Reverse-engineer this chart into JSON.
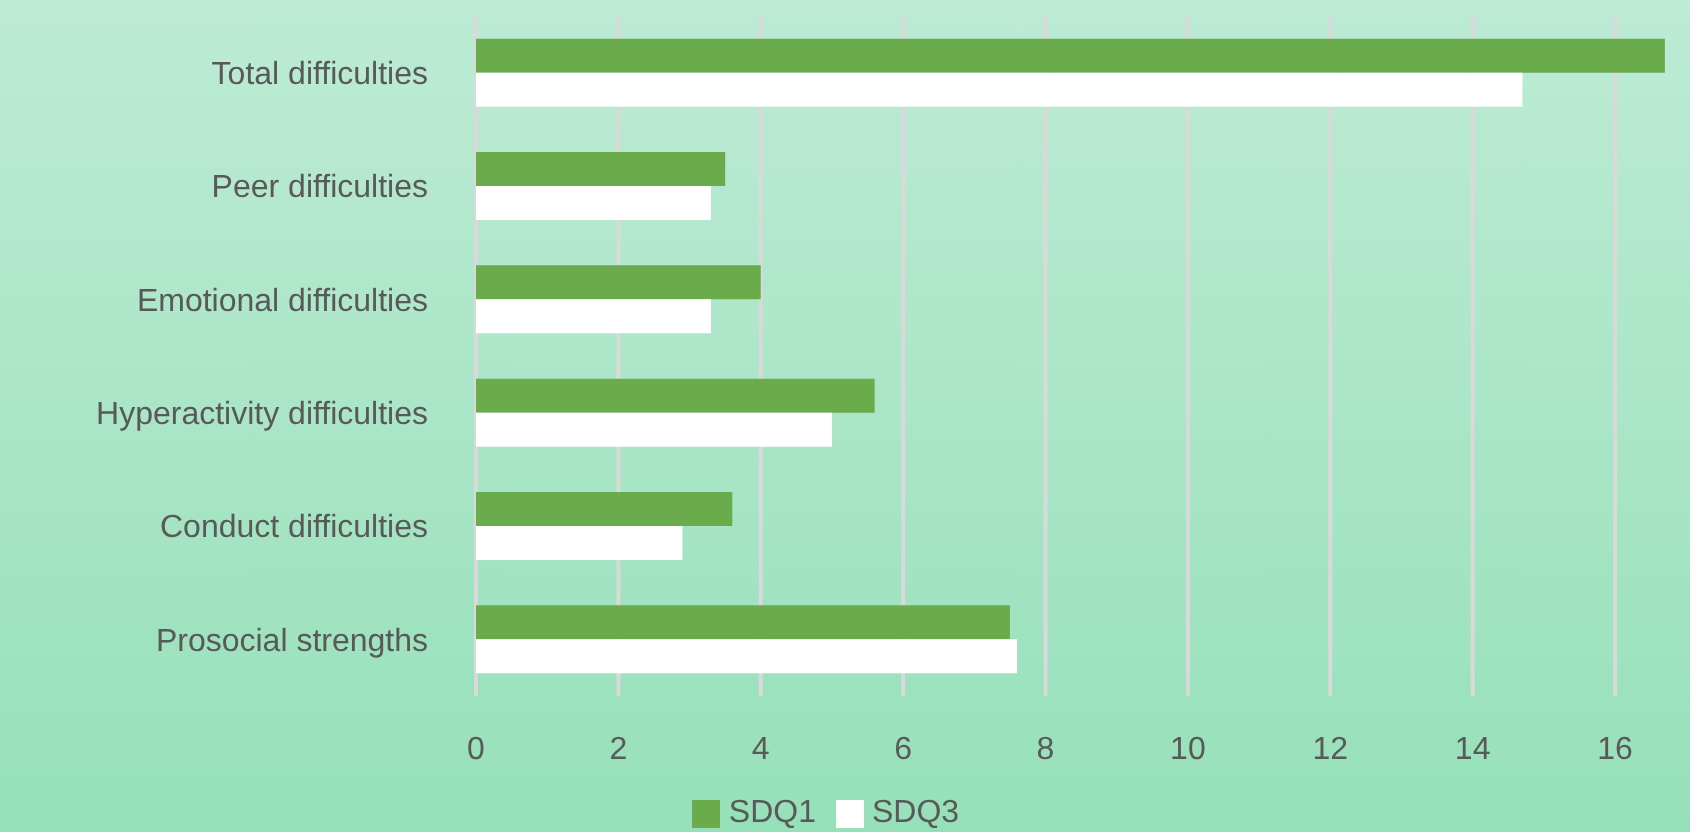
{
  "chart_data": {
    "type": "bar",
    "orientation": "horizontal",
    "categories": [
      "Total difficulties",
      "Peer difficulties",
      "Emotional difficulties",
      "Hyperactivity difficulties",
      "Conduct difficulties",
      "Prosocial strengths"
    ],
    "series": [
      {
        "name": "SDQ1",
        "color": "#6aab4c",
        "values": [
          16.7,
          3.5,
          4.0,
          5.6,
          3.6,
          7.5
        ]
      },
      {
        "name": "SDQ3",
        "color": "#ffffff",
        "values": [
          14.7,
          3.3,
          3.3,
          5.0,
          2.9,
          7.6
        ]
      }
    ],
    "xlim": [
      0,
      16.8
    ],
    "xticks": [
      0,
      2,
      4,
      6,
      8,
      10,
      12,
      14,
      16
    ],
    "grid": "x",
    "legend": "bottom"
  }
}
